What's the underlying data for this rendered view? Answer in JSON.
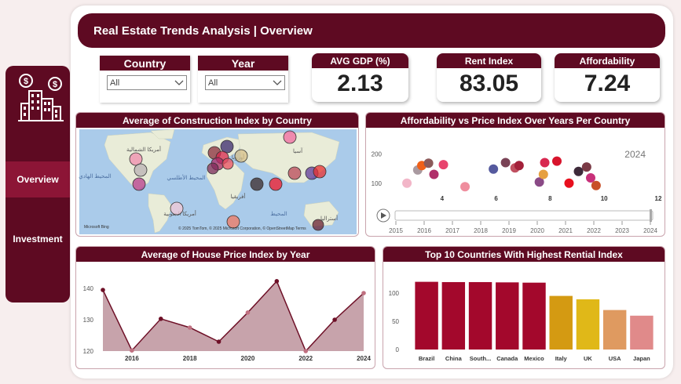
{
  "header": {
    "title": "Real Estate Trends Analysis | Overview"
  },
  "nav": {
    "items": [
      {
        "label": "Overview"
      },
      {
        "label": "Investment"
      }
    ]
  },
  "filters": {
    "country": {
      "label": "Country",
      "value": "All"
    },
    "year": {
      "label": "Year",
      "value": "All"
    }
  },
  "kpis": [
    {
      "label": "AVG GDP (%)",
      "value": "2.13"
    },
    {
      "label": "Rent Index",
      "value": "83.05"
    },
    {
      "label": "Affordability",
      "value": "7.24"
    }
  ],
  "map": {
    "title": "Average of Construction Index by Country",
    "labels": {
      "north_america": "أمريكا الشمالية",
      "pacific": "المحيط الهادي",
      "atlantic": "المحيط الأطلسي",
      "europe": "أوروبا",
      "asia": "آسيا",
      "africa": "أفريقيا",
      "south_america": "أمريكا الجنوبية",
      "indian_ocean": "المحيط",
      "australia": "أستراليا"
    },
    "attribution": "© 2025 TomTom, © 2025 Microsoft Corporation, © OpenStreetMap Terms",
    "bing": "Microsoft Bing"
  },
  "scatter": {
    "title": "Affordability vs Price Index Over Years Per Country",
    "year": "2024",
    "timeline": [
      "2015",
      "2016",
      "2017",
      "2018",
      "2019",
      "2020",
      "2021",
      "2022",
      "2023",
      "2024"
    ]
  },
  "colors": {
    "primary": "#5e0a22",
    "accent": "#8c1536",
    "area_fill": "#bd939c",
    "line": "#6e1027"
  },
  "chart_data": [
    {
      "type": "scatter",
      "title": "Affordability vs Price Index Over Years Per Country",
      "xticks": [
        4,
        6,
        8,
        10,
        12
      ],
      "yticks": [
        100,
        200
      ],
      "xlim": [
        2,
        12
      ],
      "ylim": [
        70,
        230
      ],
      "points": [
        {
          "x": 2.7,
          "y": 100,
          "color": "#f2b6c8"
        },
        {
          "x": 3.1,
          "y": 145,
          "color": "#a99aa0"
        },
        {
          "x": 3.25,
          "y": 160,
          "color": "#f06018"
        },
        {
          "x": 3.5,
          "y": 168,
          "color": "#8c5a5a"
        },
        {
          "x": 3.7,
          "y": 130,
          "color": "#b0306a"
        },
        {
          "x": 4.05,
          "y": 163,
          "color": "#e8446e"
        },
        {
          "x": 4.85,
          "y": 88,
          "color": "#ef8e9e"
        },
        {
          "x": 5.9,
          "y": 148,
          "color": "#555a9e"
        },
        {
          "x": 6.35,
          "y": 170,
          "color": "#7a4356"
        },
        {
          "x": 6.7,
          "y": 152,
          "color": "#c05060"
        },
        {
          "x": 6.85,
          "y": 160,
          "color": "#a3203a"
        },
        {
          "x": 7.6,
          "y": 104,
          "color": "#8a4a86"
        },
        {
          "x": 7.75,
          "y": 130,
          "color": "#e6a040"
        },
        {
          "x": 7.8,
          "y": 170,
          "color": "#d82850"
        },
        {
          "x": 8.25,
          "y": 175,
          "color": "#d8142c"
        },
        {
          "x": 8.7,
          "y": 100,
          "color": "#e8101e"
        },
        {
          "x": 9.05,
          "y": 140,
          "color": "#3e2a3a"
        },
        {
          "x": 9.35,
          "y": 155,
          "color": "#7a3a46"
        },
        {
          "x": 9.5,
          "y": 118,
          "color": "#c8307a"
        },
        {
          "x": 9.7,
          "y": 92,
          "color": "#c85028"
        }
      ]
    },
    {
      "type": "area",
      "title": "Average of House Price Index by Year",
      "x": [
        2015,
        2016,
        2017,
        2018,
        2019,
        2020,
        2021,
        2022,
        2023,
        2024
      ],
      "values": [
        139.5,
        120.2,
        130.3,
        127.5,
        123.0,
        132.3,
        142.3,
        120.0,
        130.0,
        138.5
      ],
      "xticks": [
        2016,
        2018,
        2020,
        2022,
        2024
      ],
      "yticks": [
        120,
        130,
        140
      ],
      "ylim": [
        120,
        143
      ]
    },
    {
      "type": "bar",
      "title": "Top 10 Countries With Highest Rential Index",
      "categories": [
        "Brazil",
        "China",
        "South...",
        "Canada",
        "Mexico",
        "Italy",
        "UK",
        "USA",
        "Japan"
      ],
      "values": [
        120,
        119.5,
        119.5,
        119,
        118.5,
        95,
        89,
        70,
        60
      ],
      "colors": [
        "#a3082c",
        "#a3082c",
        "#a3082c",
        "#a3082c",
        "#a3082c",
        "#d49a12",
        "#e0b818",
        "#df9a60",
        "#e08a8a"
      ],
      "yticks": [
        0,
        50,
        100
      ],
      "ylim": [
        0,
        125
      ]
    }
  ]
}
